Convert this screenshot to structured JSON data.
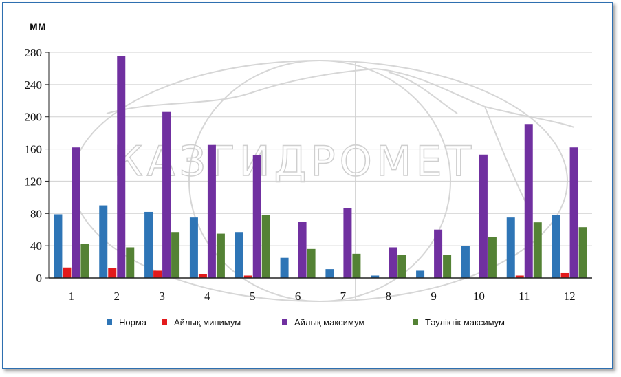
{
  "chart_data": {
    "type": "bar",
    "unit_label": "мм",
    "categories": [
      "1",
      "2",
      "3",
      "4",
      "5",
      "6",
      "7",
      "8",
      "9",
      "10",
      "11",
      "12"
    ],
    "ylim": [
      0,
      280
    ],
    "yticks": [
      0,
      40,
      80,
      120,
      160,
      200,
      240,
      280
    ],
    "grid": true,
    "legend_position": "bottom",
    "series": [
      {
        "name": "Норма",
        "color": "#2e75b6",
        "values": [
          79,
          90,
          82,
          75,
          57,
          25,
          11,
          3,
          9,
          40,
          75,
          78
        ]
      },
      {
        "name": "Айлық минимум",
        "color": "#e31a1c",
        "values": [
          13,
          12,
          9,
          5,
          3,
          0,
          0,
          0,
          0,
          0,
          3,
          6
        ]
      },
      {
        "name": "Айлық максимум",
        "color": "#7030a0",
        "values": [
          162,
          275,
          206,
          165,
          152,
          70,
          87,
          38,
          60,
          153,
          191,
          162
        ]
      },
      {
        "name": "Тәуліктік максимум",
        "color": "#548235",
        "values": [
          42,
          38,
          57,
          55,
          78,
          36,
          30,
          29,
          29,
          51,
          69,
          63
        ]
      }
    ],
    "watermark": "КАЗГИДРОМЕТ"
  }
}
